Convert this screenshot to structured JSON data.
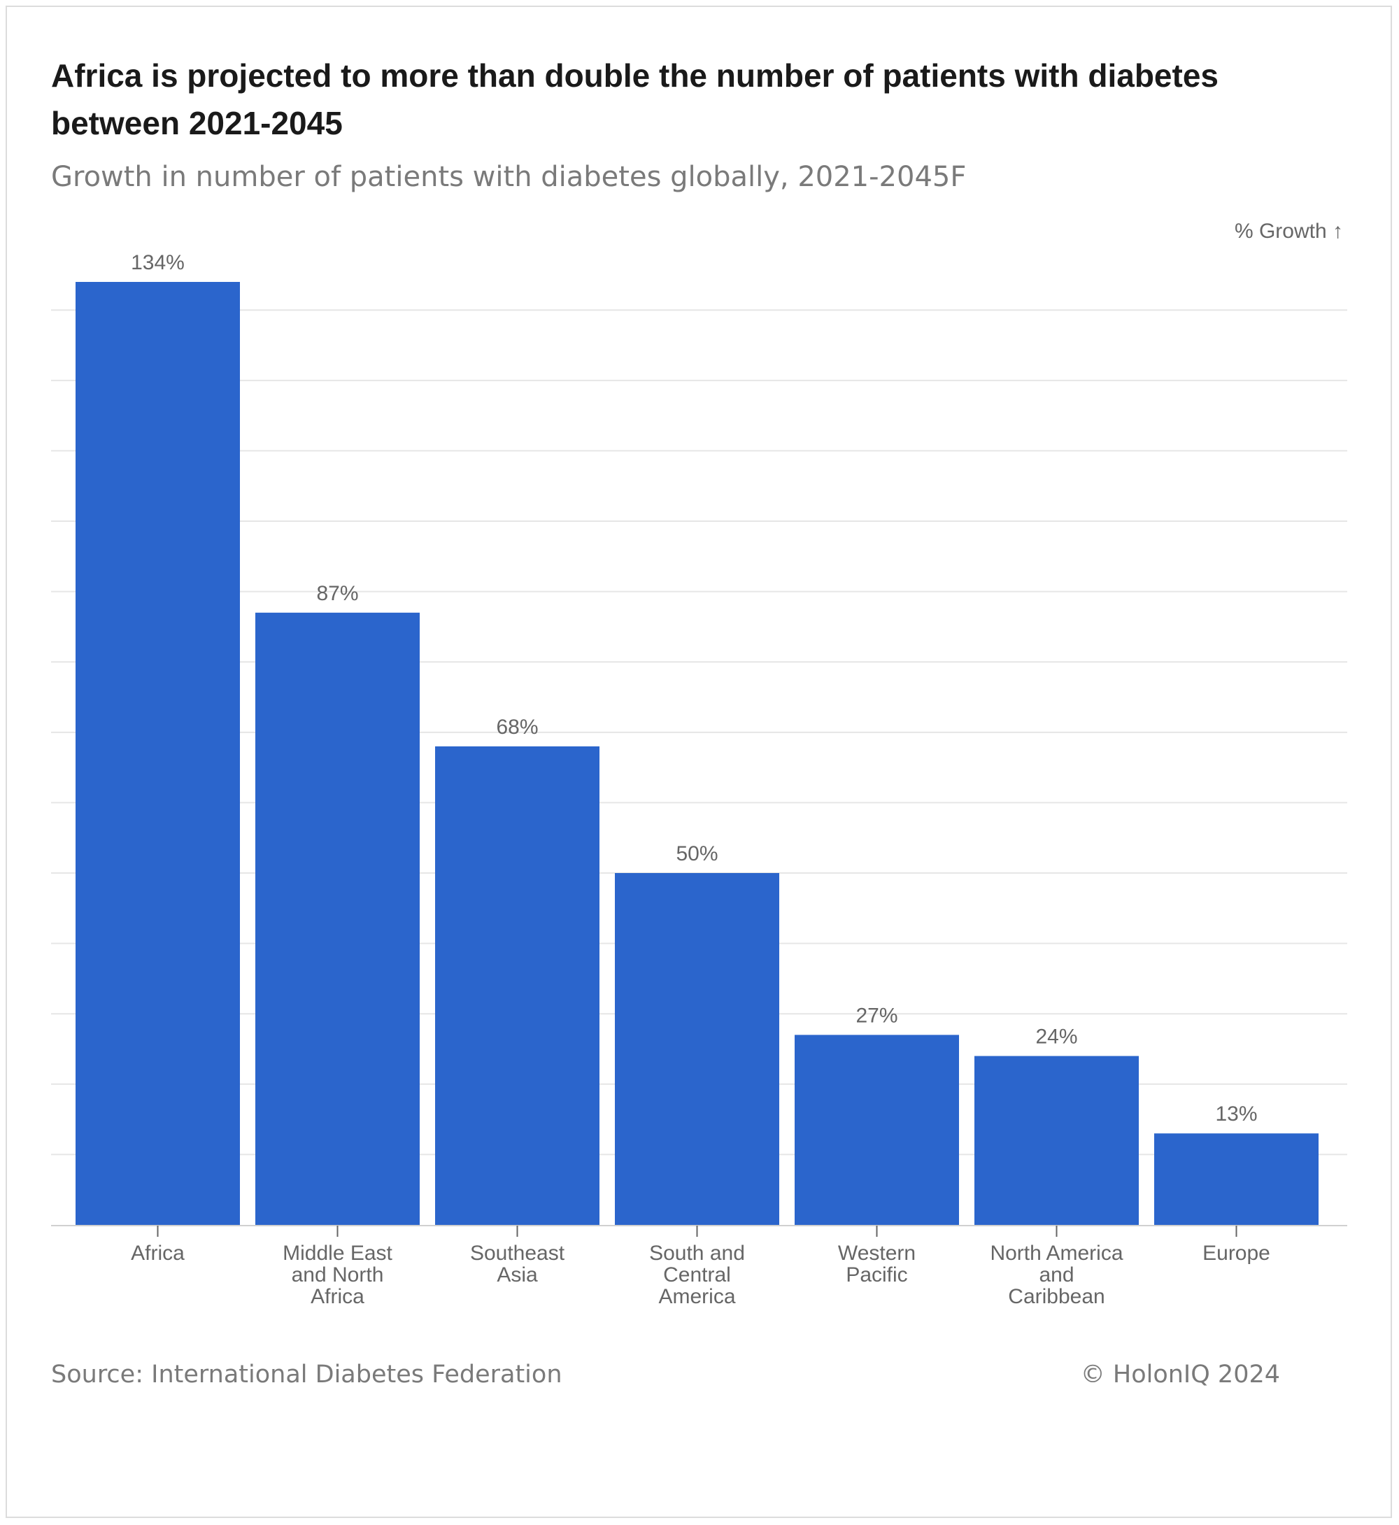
{
  "title": "Africa is projected to more than double the number of patients with diabetes between 2021-2045",
  "subtitle": "Growth in number of patients with diabetes globally, 2021-2045F",
  "source": "Source: International Diabetes Federation",
  "copyright": "© HolonIQ 2024",
  "colors": {
    "bar": "#2b65cc",
    "grid": "#e6e6e6",
    "text": "#666666"
  },
  "chart_data": {
    "type": "bar",
    "ylabel": "% Growth ↑",
    "categories": [
      [
        "Africa"
      ],
      [
        "Middle East",
        "and North",
        "Africa"
      ],
      [
        "Southeast",
        "Asia"
      ],
      [
        "South and",
        "Central",
        "America"
      ],
      [
        "Western",
        "Pacific"
      ],
      [
        "North America",
        "and",
        "Caribbean"
      ],
      [
        "Europe"
      ]
    ],
    "values": [
      134,
      87,
      68,
      50,
      27,
      24,
      13
    ],
    "value_labels": [
      "134%",
      "87%",
      "68%",
      "50%",
      "27%",
      "24%",
      "13%"
    ],
    "ylim": [
      0,
      134
    ],
    "grid_step": 10,
    "grid": true,
    "ytick_labels": false
  }
}
